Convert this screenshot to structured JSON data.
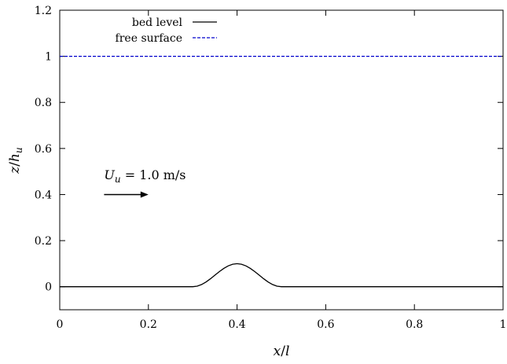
{
  "chart_data": {
    "type": "line",
    "title": "",
    "xlabel": "x/l",
    "ylabel": "z/h_u",
    "xlim": [
      0,
      1
    ],
    "ylim": [
      -0.1,
      1.2
    ],
    "xticks": [
      0,
      0.2,
      0.4,
      0.6,
      0.8,
      1
    ],
    "xtick_labels": [
      "0",
      "0.2",
      "0.4",
      "0.6",
      "0.8",
      "1"
    ],
    "yticks": [
      0,
      0.2,
      0.4,
      0.6,
      0.8,
      1,
      1.2
    ],
    "ytick_labels": [
      "0",
      "0.2",
      "0.4",
      "0.6",
      "0.8",
      "1",
      "1.2"
    ],
    "grid": false,
    "legend_position": "top-left",
    "series": [
      {
        "name": "bed level",
        "color": "#000000",
        "style": "solid",
        "x": [
          0,
          0.3,
          0.31,
          0.32,
          0.33,
          0.34,
          0.35,
          0.36,
          0.37,
          0.38,
          0.39,
          0.4,
          0.41,
          0.42,
          0.43,
          0.44,
          0.45,
          0.46,
          0.47,
          0.48,
          0.49,
          0.5,
          1
        ],
        "y": [
          0,
          0,
          0.0025,
          0.0095,
          0.0206,
          0.0345,
          0.05,
          0.0655,
          0.0794,
          0.0905,
          0.0976,
          0.1,
          0.0976,
          0.0905,
          0.0794,
          0.0655,
          0.05,
          0.0345,
          0.0206,
          0.0095,
          0.0025,
          0,
          0
        ]
      },
      {
        "name": "free surface",
        "color": "#0000cc",
        "style": "dashed",
        "x": [
          0,
          1
        ],
        "y": [
          1,
          1
        ]
      }
    ],
    "annotations": [
      {
        "text_parts": {
          "sym": "U",
          "sub": "u",
          "rest": " = 1.0 m/s"
        },
        "x": 0.1,
        "y": 0.48
      },
      {
        "arrow_from": [
          0.1,
          0.4
        ],
        "arrow_to": [
          0.2,
          0.4
        ]
      }
    ]
  }
}
